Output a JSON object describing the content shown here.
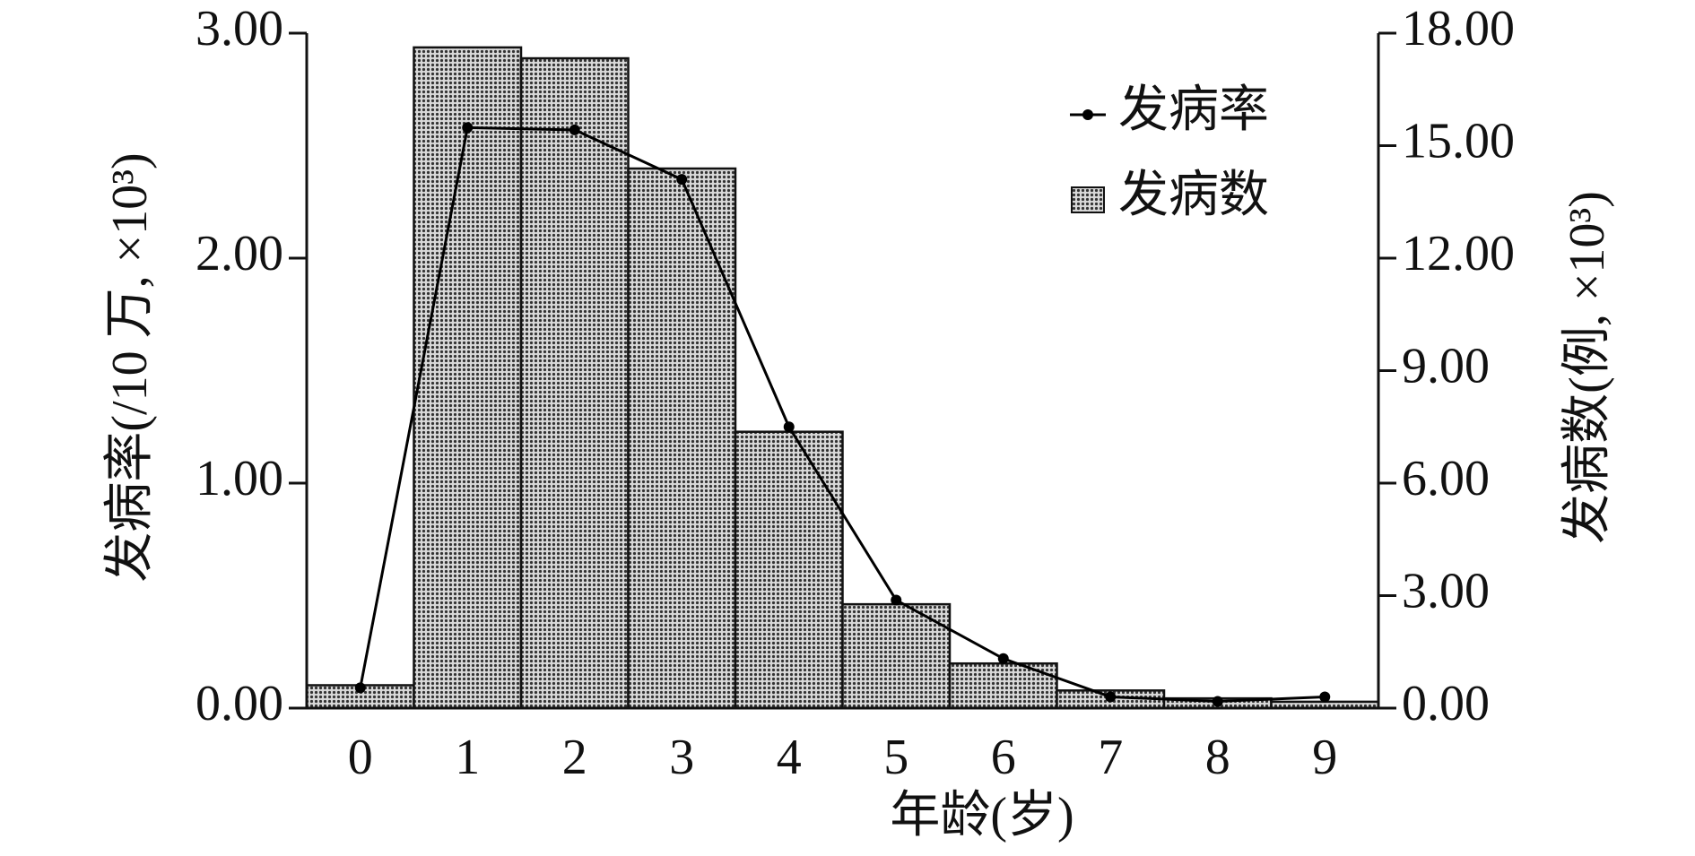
{
  "chart_data": {
    "type": "combo",
    "x_label": "年龄(岁)",
    "y_label": "发病率(/10 万, ×10³)",
    "y2_label": "发病数(例, ×10³)",
    "categories": [
      "0",
      "1",
      "2",
      "3",
      "4",
      "5",
      "6",
      "7",
      "8",
      "9"
    ],
    "series": [
      {
        "name": "发病率",
        "type": "line",
        "color": "#000000",
        "values": [
          0.09,
          2.58,
          2.57,
          2.35,
          1.25,
          0.48,
          0.22,
          0.05,
          0.03,
          0.05
        ]
      },
      {
        "name": "发病数",
        "type": "bar",
        "axis": "y2",
        "color": "#8c8c8c",
        "values": [
          0.61,
          17.62,
          17.33,
          14.39,
          7.37,
          2.77,
          1.19,
          0.47,
          0.26,
          0.17
        ]
      }
    ],
    "ylim": [
      0,
      3
    ],
    "yticks": [
      {
        "value": 0,
        "label": "0.00"
      },
      {
        "value": 1,
        "label": "1.00"
      },
      {
        "value": 2,
        "label": "2.00"
      },
      {
        "value": 3,
        "label": "3.00"
      }
    ],
    "y2lim": [
      0,
      18
    ],
    "y2ticks": [
      {
        "value": 0,
        "label": "0.00"
      },
      {
        "value": 3,
        "label": "3.00"
      },
      {
        "value": 6,
        "label": "6.00"
      },
      {
        "value": 9,
        "label": "9.00"
      },
      {
        "value": 12,
        "label": "12.00"
      },
      {
        "value": 15,
        "label": "15.00"
      },
      {
        "value": 18,
        "label": "18.00"
      }
    ],
    "legend": "upper right"
  }
}
